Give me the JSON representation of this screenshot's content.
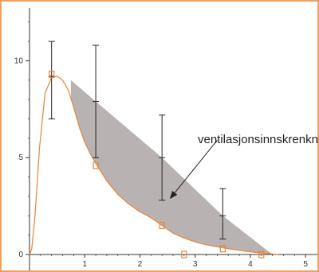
{
  "chart_data": {
    "type": "line",
    "title": "",
    "xlabel": "",
    "ylabel": "",
    "xlim": [
      0,
      5.2
    ],
    "ylim": [
      0,
      12.4
    ],
    "x_ticks": [
      "1",
      "2",
      "3",
      "4",
      "5"
    ],
    "y_ticks": [
      "0",
      "5",
      "10"
    ],
    "x_tick_values": [
      1,
      2,
      3,
      4,
      5
    ],
    "y_tick_values": [
      0,
      5,
      10
    ],
    "grid": false,
    "legend": "none",
    "colors": {
      "frame": "#f0a060",
      "curve": "#e8843a",
      "markers": "#e8843a",
      "shaded_area": "#b9b2b2",
      "error_bars": "#222222",
      "axes": "#333333"
    },
    "series": [
      {
        "kind": "curve",
        "x": [
          0.0,
          0.04,
          0.1,
          0.18,
          0.28,
          0.4,
          0.5,
          0.6,
          0.7,
          0.8,
          0.9,
          1.0,
          1.1,
          1.2,
          1.4,
          1.6,
          1.8,
          2.0,
          2.2,
          2.4,
          2.6,
          2.8,
          3.0,
          3.2,
          3.4,
          3.6,
          3.8,
          4.0,
          4.2,
          4.35,
          4.5
        ],
        "y": [
          0.0,
          0.3,
          2.0,
          5.5,
          8.3,
          9.15,
          9.2,
          9.0,
          8.5,
          7.6,
          6.6,
          5.8,
          5.2,
          4.7,
          3.8,
          3.1,
          2.6,
          2.2,
          1.9,
          1.5,
          1.1,
          0.85,
          0.65,
          0.5,
          0.4,
          0.3,
          0.22,
          0.14,
          0.08,
          0.04,
          0.0
        ]
      },
      {
        "kind": "markers",
        "x": [
          0.4,
          1.2,
          2.4,
          2.8,
          3.5,
          4.2
        ],
        "y": [
          9.3,
          4.6,
          1.5,
          0.0,
          0.3,
          0.0
        ]
      },
      {
        "kind": "error_bars",
        "x": [
          0.4,
          1.2,
          2.4,
          3.5
        ],
        "center": [
          9.2,
          7.9,
          5.0,
          2.0
        ],
        "low": [
          7.0,
          5.0,
          2.8,
          0.8
        ],
        "high": [
          11.0,
          10.8,
          7.2,
          3.4
        ]
      },
      {
        "kind": "shaded_region",
        "upper_x": [
          0.75,
          1.2,
          2.4,
          3.5,
          4.4
        ],
        "upper_y": [
          9.0,
          7.9,
          5.0,
          2.0,
          0.0
        ],
        "lower_curve": "curve"
      }
    ],
    "annotations": [
      {
        "text": "ventilasjonsinnskrenkning",
        "arrow_from": [
          3.4,
          5.9
        ],
        "arrow_to": [
          2.55,
          2.9
        ]
      }
    ]
  }
}
